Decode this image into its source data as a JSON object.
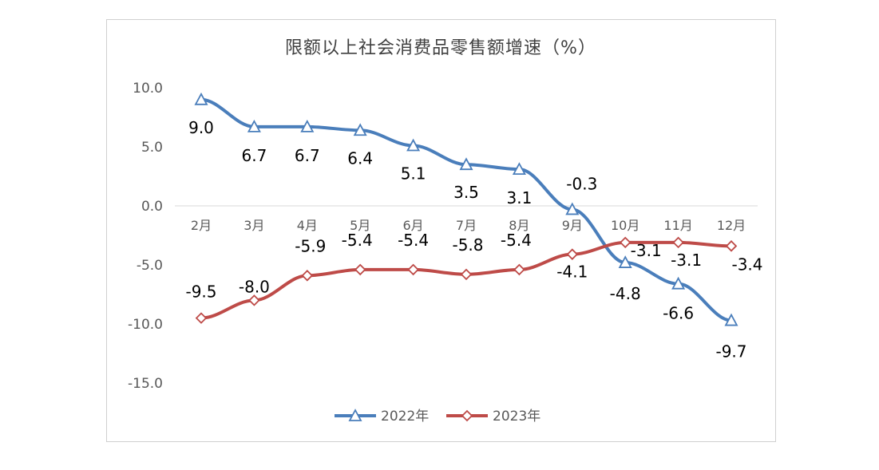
{
  "chart_data": {
    "type": "line",
    "title": "限额以上社会消费品零售额增速（%）",
    "categories": [
      "2月",
      "3月",
      "4月",
      "5月",
      "6月",
      "7月",
      "8月",
      "9月",
      "10月",
      "11月",
      "12月"
    ],
    "ylim": [
      -15,
      10
    ],
    "yticks": [
      "10.0",
      "5.0",
      "0.0",
      "-5.0",
      "-10.0",
      "-15.0"
    ],
    "grid": false,
    "legend_position": "bottom",
    "series": [
      {
        "name": "2022年",
        "color": "#4a7ebb",
        "marker": "triangle",
        "values": [
          9.0,
          6.7,
          6.7,
          6.4,
          5.1,
          3.5,
          3.1,
          -0.3,
          -4.8,
          -6.6,
          -9.7
        ],
        "labels": [
          "9.0",
          "6.7",
          "6.7",
          "6.4",
          "5.1",
          "3.5",
          "3.1",
          "-0.3",
          "-4.8",
          "-6.6",
          "-9.7"
        ]
      },
      {
        "name": "2023年",
        "color": "#be4b48",
        "marker": "diamond",
        "values": [
          -9.5,
          -8.0,
          -5.9,
          -5.4,
          -5.4,
          -5.8,
          -5.4,
          -4.1,
          -3.1,
          -3.1,
          -3.4
        ],
        "labels": [
          "-9.5",
          "-8.0",
          "-5.9",
          "-5.4",
          "-5.4",
          "-5.8",
          "-5.4",
          "-4.1",
          "-3.1",
          "-3.1",
          "-3.4"
        ]
      }
    ]
  }
}
